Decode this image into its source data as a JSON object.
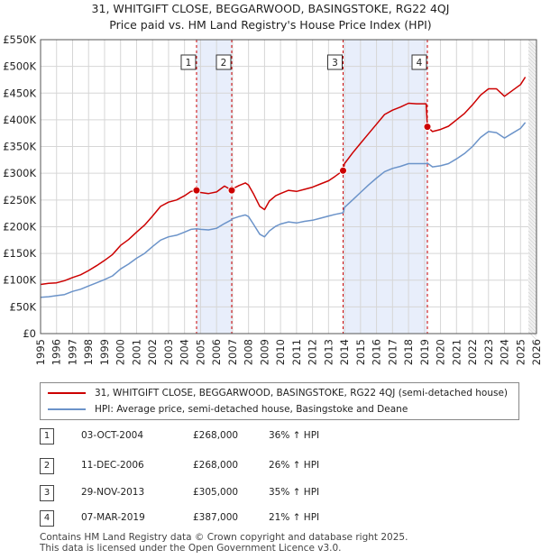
{
  "title_line1": "31, WHITGIFT CLOSE, BEGGARWOOD, BASINGSTOKE, RG22 4QJ",
  "title_line2": "Price paid vs. HM Land Registry's House Price Index (HPI)",
  "chart_data": {
    "type": "line",
    "title": "31, WHITGIFT CLOSE, BEGGARWOOD, BASINGSTOKE, RG22 4QJ — Price paid vs. HM Land Registry's House Price Index (HPI)",
    "xlabel": "",
    "ylabel": "",
    "xlim": [
      1995,
      2026
    ],
    "ylim": [
      0,
      550000
    ],
    "grid": true,
    "x_ticks": [
      1995,
      1996,
      1997,
      1998,
      1999,
      2000,
      2001,
      2002,
      2003,
      2004,
      2005,
      2006,
      2007,
      2008,
      2009,
      2010,
      2011,
      2012,
      2013,
      2014,
      2015,
      2016,
      2017,
      2018,
      2019,
      2020,
      2021,
      2022,
      2023,
      2024,
      2025,
      2026
    ],
    "y_ticks": [
      {
        "value": 0,
        "label": "£0"
      },
      {
        "value": 50000,
        "label": "£50K"
      },
      {
        "value": 100000,
        "label": "£100K"
      },
      {
        "value": 150000,
        "label": "£150K"
      },
      {
        "value": 200000,
        "label": "£200K"
      },
      {
        "value": 250000,
        "label": "£250K"
      },
      {
        "value": 300000,
        "label": "£300K"
      },
      {
        "value": 350000,
        "label": "£350K"
      },
      {
        "value": 400000,
        "label": "£400K"
      },
      {
        "value": 450000,
        "label": "£450K"
      },
      {
        "value": 500000,
        "label": "£500K"
      },
      {
        "value": 550000,
        "label": "£550K"
      }
    ],
    "shaded_periods": [
      [
        2004.75,
        2006.95
      ],
      [
        2013.91,
        2019.18
      ]
    ],
    "series": [
      {
        "name": "31, WHITGIFT CLOSE, BEGGARWOOD, BASINGSTOKE, RG22 4QJ (semi-detached house)",
        "color": "#cc0000",
        "x": [
          1995,
          1995.5,
          1996,
          1996.5,
          1997,
          1997.5,
          1998,
          1998.5,
          1999,
          1999.5,
          2000,
          2000.5,
          2001,
          2001.5,
          2002,
          2002.5,
          2003,
          2003.5,
          2004,
          2004.4,
          2004.75,
          2005,
          2005.5,
          2006,
          2006.5,
          2006.95,
          2007,
          2007.4,
          2007.8,
          2008,
          2008.3,
          2008.7,
          2009,
          2009.3,
          2009.7,
          2010,
          2010.5,
          2011,
          2011.5,
          2012,
          2012.5,
          2013,
          2013.4,
          2013.91,
          2014,
          2014.5,
          2015,
          2015.5,
          2016,
          2016.5,
          2017,
          2017.5,
          2018,
          2018.5,
          2019.1,
          2019.18,
          2019.5,
          2020,
          2020.5,
          2021,
          2021.5,
          2022,
          2022.5,
          2023,
          2023.5,
          2024,
          2024.5,
          2025,
          2025.3
        ],
        "y": [
          92000,
          94000,
          95000,
          99000,
          105000,
          110000,
          118000,
          127000,
          137000,
          148000,
          165000,
          176000,
          190000,
          203000,
          220000,
          238000,
          246000,
          250000,
          258000,
          266000,
          268000,
          264000,
          262000,
          265000,
          276000,
          268000,
          271000,
          277000,
          282000,
          278000,
          262000,
          238000,
          232000,
          248000,
          258000,
          262000,
          268000,
          266000,
          270000,
          274000,
          280000,
          286000,
          294000,
          305000,
          318000,
          338000,
          356000,
          374000,
          392000,
          410000,
          418000,
          424000,
          431000,
          430000,
          430000,
          387000,
          378000,
          382000,
          388000,
          400000,
          412000,
          428000,
          446000,
          458000,
          458000,
          444000,
          455000,
          466000,
          480000
        ]
      },
      {
        "name": "HPI: Average price, semi-detached house, Basingstoke and Deane",
        "color": "#6b93c9",
        "x": [
          1995,
          1995.5,
          1996,
          1996.5,
          1997,
          1997.5,
          1998,
          1998.5,
          1999,
          1999.5,
          2000,
          2000.5,
          2001,
          2001.5,
          2002,
          2002.5,
          2003,
          2003.5,
          2004,
          2004.4,
          2004.75,
          2005,
          2005.5,
          2006,
          2006.5,
          2006.95,
          2007,
          2007.4,
          2007.8,
          2008,
          2008.3,
          2008.7,
          2009,
          2009.3,
          2009.7,
          2010,
          2010.5,
          2011,
          2011.5,
          2012,
          2012.5,
          2013,
          2013.4,
          2013.91,
          2014,
          2014.5,
          2015,
          2015.5,
          2016,
          2016.5,
          2017,
          2017.5,
          2018,
          2018.5,
          2019.1,
          2019.18,
          2019.5,
          2020,
          2020.5,
          2021,
          2021.5,
          2022,
          2022.5,
          2023,
          2023.5,
          2024,
          2024.5,
          2025,
          2025.3
        ],
        "y": [
          68000,
          69000,
          71000,
          73000,
          79000,
          83000,
          89000,
          95000,
          101000,
          108000,
          121000,
          130000,
          141000,
          150000,
          163000,
          175000,
          181000,
          184000,
          190000,
          195000,
          196000,
          195000,
          194000,
          197000,
          206000,
          213000,
          215000,
          219000,
          222000,
          219000,
          205000,
          186000,
          181000,
          192000,
          201000,
          205000,
          209000,
          207000,
          210000,
          212000,
          216000,
          220000,
          223000,
          226000,
          236000,
          250000,
          264000,
          278000,
          291000,
          303000,
          309000,
          313000,
          318000,
          318000,
          318000,
          319000,
          312000,
          314000,
          318000,
          327000,
          337000,
          350000,
          367000,
          378000,
          376000,
          366000,
          375000,
          384000,
          395000
        ]
      }
    ],
    "sales": [
      {
        "label": "1",
        "date": "03-OCT-2004",
        "x": 2004.75,
        "price": 268000,
        "price_text": "£268,000",
        "hpi": "36% ↑ HPI"
      },
      {
        "label": "2",
        "date": "11-DEC-2006",
        "x": 2006.95,
        "price": 268000,
        "price_text": "£268,000",
        "hpi": "26% ↑ HPI"
      },
      {
        "label": "3",
        "date": "29-NOV-2013",
        "x": 2013.91,
        "price": 305000,
        "price_text": "£305,000",
        "hpi": "35% ↑ HPI"
      },
      {
        "label": "4",
        "date": "07-MAR-2019",
        "x": 2019.18,
        "price": 387000,
        "price_text": "£387,000",
        "hpi": "21% ↑ HPI"
      }
    ]
  },
  "legend": {
    "red_label": "31, WHITGIFT CLOSE, BEGGARWOOD, BASINGSTOKE, RG22 4QJ (semi-detached house)",
    "blue_label": "HPI: Average price, semi-detached house, Basingstoke and Deane",
    "red_color": "#cc0000",
    "blue_color": "#6b93c9"
  },
  "footer_line1": "Contains HM Land Registry data © Crown copyright and database right 2025.",
  "footer_line2": "This data is licensed under the Open Government Licence v3.0."
}
